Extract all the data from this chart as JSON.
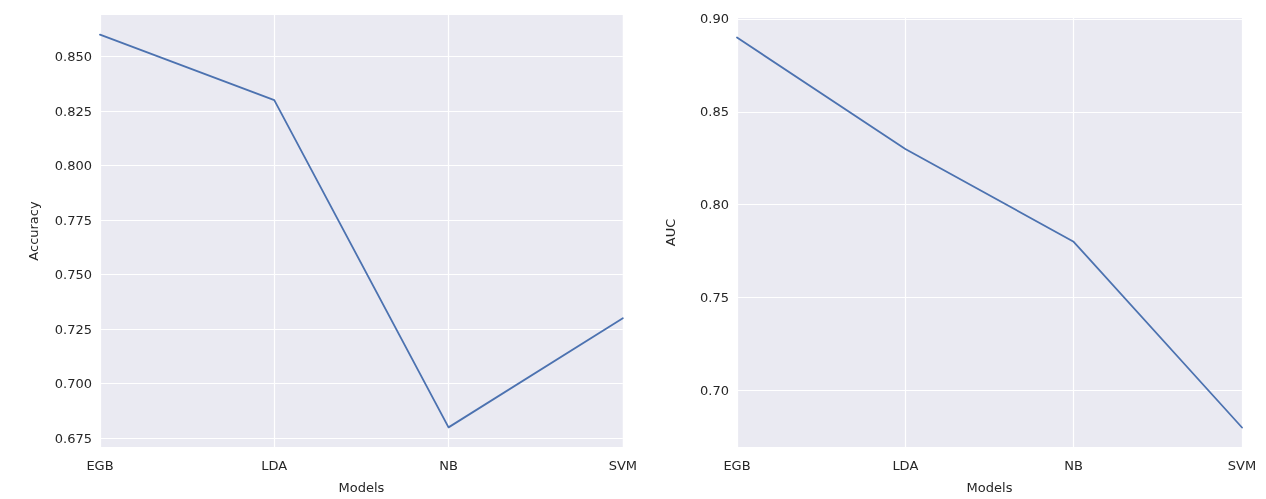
{
  "chart_data": [
    {
      "type": "line",
      "xlabel": "Models",
      "ylabel": "Accuracy",
      "categories": [
        "EGB",
        "LDA",
        "NB",
        "SVM"
      ],
      "series": [
        {
          "color": "#4c72b0",
          "values": [
            0.86,
            0.83,
            0.68,
            0.73
          ]
        }
      ],
      "ylim": [
        0.671,
        0.869
      ],
      "yticks": [
        {
          "value": 0.675,
          "label": "0.675"
        },
        {
          "value": 0.7,
          "label": "0.700"
        },
        {
          "value": 0.725,
          "label": "0.725"
        },
        {
          "value": 0.75,
          "label": "0.750"
        },
        {
          "value": 0.775,
          "label": "0.775"
        },
        {
          "value": 0.8,
          "label": "0.800"
        },
        {
          "value": 0.825,
          "label": "0.825"
        },
        {
          "value": 0.85,
          "label": "0.850"
        }
      ],
      "grid": true,
      "marker": "none",
      "line_style": "solid"
    },
    {
      "type": "line",
      "xlabel": "Models",
      "ylabel": "AUC",
      "categories": [
        "EGB",
        "LDA",
        "NB",
        "SVM"
      ],
      "series": [
        {
          "color": "#4c72b0",
          "values": [
            0.89,
            0.83,
            0.78,
            0.68
          ]
        }
      ],
      "ylim": [
        0.6695,
        0.9005
      ],
      "yticks": [
        {
          "value": 0.7,
          "label": "0.70"
        },
        {
          "value": 0.75,
          "label": "0.75"
        },
        {
          "value": 0.8,
          "label": "0.80"
        },
        {
          "value": 0.85,
          "label": "0.85"
        },
        {
          "value": 0.9,
          "label": "0.90"
        }
      ],
      "grid": true,
      "marker": "none",
      "line_style": "solid"
    }
  ]
}
